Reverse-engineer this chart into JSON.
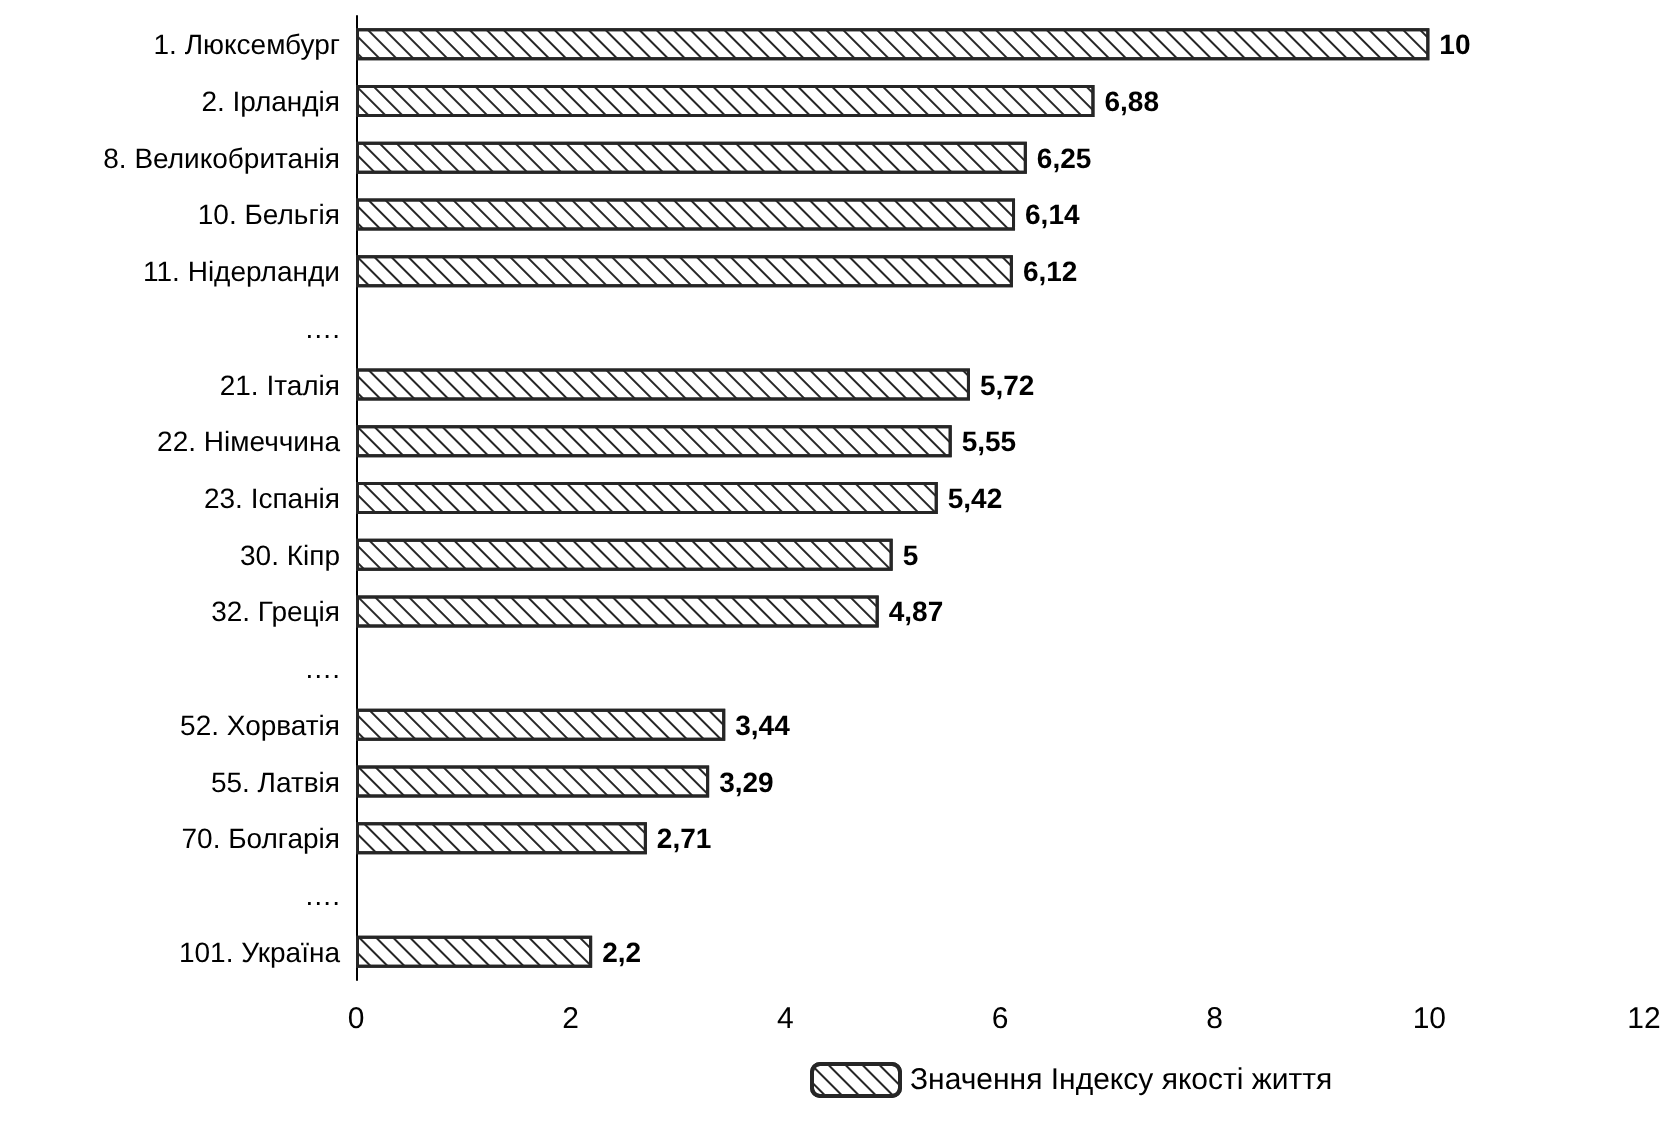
{
  "chart_data": {
    "type": "bar",
    "orientation": "horizontal",
    "categories": [
      "1. Люксембург",
      "2. Ірландія",
      "8. Великобританія",
      "10. Бельгія",
      "11. Нідерланди",
      "….",
      "21. Італія",
      "22. Німеччина",
      "23. Іспанія",
      "30. Кіпр",
      "32. Греція",
      "….",
      "52. Хорватія",
      "55. Латвія",
      "70. Болгарія",
      "….",
      "101. Україна"
    ],
    "series": [
      {
        "name": "Значення Індексу якості життя",
        "color": "#262626",
        "values": [
          10,
          6.88,
          6.25,
          6.14,
          6.12,
          null,
          5.72,
          5.55,
          5.42,
          5,
          4.87,
          null,
          3.44,
          3.29,
          2.71,
          null,
          2.2
        ],
        "value_labels": [
          "10",
          "6,88",
          "6,25",
          "6,14",
          "6,12",
          null,
          "5,72",
          "5,55",
          "5,42",
          "5",
          "4,87",
          null,
          "3,44",
          "3,29",
          "2,71",
          null,
          "2,2"
        ]
      }
    ],
    "xlim": [
      0,
      12
    ],
    "xticks": [
      0,
      2,
      4,
      6,
      8,
      10,
      12
    ],
    "grid": false,
    "legend": "bottom"
  }
}
